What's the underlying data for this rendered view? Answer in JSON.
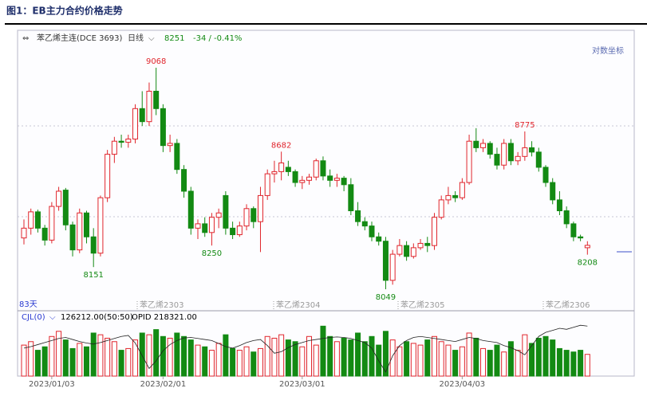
{
  "chart_data": {
    "type": "candlestick",
    "title": "图1：EB主力合约价格走势",
    "instrument": "苯乙烯主连(DCE 3693)",
    "period": "日线",
    "change": "-34 / -0.41%",
    "scale_mode": "对数坐标",
    "span": "83天",
    "contracts": [
      "苯乙烯2303",
      "苯乙烯2304",
      "苯乙烯2305",
      "苯乙烯2306"
    ],
    "volume_label": "CJL(0)",
    "volume_readout": "126212.00(50:50)",
    "opid_readout": "OPID 218321.00",
    "up_color": "#e0252c",
    "down_color": "#138a13",
    "opid_color": "#222222",
    "categories": [
      null,
      null,
      null,
      null,
      "2023/01/03",
      null,
      null,
      null,
      null,
      null,
      null,
      null,
      null,
      null,
      null,
      null,
      null,
      null,
      null,
      null,
      "2023/02/01",
      null,
      null,
      null,
      null,
      null,
      null,
      null,
      null,
      null,
      null,
      null,
      null,
      null,
      null,
      null,
      null,
      null,
      null,
      null,
      "2023/03/01",
      null,
      null,
      null,
      null,
      null,
      null,
      null,
      null,
      null,
      null,
      null,
      null,
      null,
      null,
      null,
      null,
      null,
      null,
      null,
      null,
      null,
      null,
      "2023/04/03",
      null,
      null,
      null,
      null,
      null,
      null,
      null,
      null,
      null,
      null,
      null,
      null,
      null,
      null,
      null,
      null,
      null,
      null
    ],
    "open": [
      8285,
      8330,
      8405,
      8330,
      8275,
      8430,
      8505,
      8345,
      8230,
      8400,
      8290,
      8215,
      8470,
      8670,
      8730,
      8725,
      8740,
      8880,
      8820,
      8960,
      8880,
      8710,
      8720,
      8600,
      8500,
      8330,
      8350,
      8310,
      8380,
      8480,
      8330,
      8300,
      8340,
      8420,
      8360,
      8480,
      8580,
      8590,
      8610,
      8590,
      8540,
      8550,
      8565,
      8640,
      8570,
      8550,
      8560,
      8530,
      8410,
      8360,
      8340,
      8290,
      8270,
      8090,
      8210,
      8250,
      8200,
      8240,
      8260,
      8250,
      8380,
      8460,
      8480,
      8470,
      8540,
      8730,
      8700,
      8720,
      8670,
      8620,
      8720,
      8640,
      8660,
      8700,
      8680,
      8610,
      8540,
      8460,
      8410,
      8350,
      8290,
      8240
    ],
    "high": [
      8370,
      8420,
      8415,
      8345,
      8450,
      8520,
      8515,
      8360,
      8420,
      8410,
      8330,
      8480,
      8690,
      8750,
      8760,
      8760,
      8900,
      8960,
      9000,
      9068,
      8900,
      8760,
      8740,
      8620,
      8520,
      8370,
      8380,
      8400,
      8420,
      8500,
      8360,
      8360,
      8440,
      8430,
      8520,
      8600,
      8640,
      8682,
      8640,
      8600,
      8570,
      8580,
      8650,
      8660,
      8600,
      8580,
      8570,
      8560,
      8450,
      8380,
      8360,
      8310,
      8290,
      8230,
      8280,
      8270,
      8260,
      8280,
      8290,
      8400,
      8480,
      8520,
      8500,
      8560,
      8760,
      8790,
      8740,
      8730,
      8700,
      8740,
      8740,
      8680,
      8775,
      8730,
      8700,
      8620,
      8560,
      8500,
      8430,
      8360,
      8300,
      8270
    ],
    "low": [
      8255,
      8300,
      8310,
      8250,
      8260,
      8410,
      8320,
      8200,
      8215,
      8260,
      8151,
      8200,
      8450,
      8630,
      8700,
      8700,
      8720,
      8800,
      8800,
      8850,
      8680,
      8680,
      8580,
      8470,
      8300,
      8280,
      8290,
      8250,
      8330,
      8300,
      8280,
      8290,
      8320,
      8330,
      8220,
      8460,
      8540,
      8550,
      8570,
      8520,
      8510,
      8530,
      8550,
      8550,
      8520,
      8520,
      8500,
      8390,
      8340,
      8320,
      8270,
      8250,
      8049,
      8070,
      8200,
      8180,
      8190,
      8230,
      8220,
      8230,
      8370,
      8440,
      8450,
      8460,
      8530,
      8680,
      8680,
      8650,
      8600,
      8600,
      8620,
      8620,
      8640,
      8660,
      8590,
      8520,
      8440,
      8390,
      8330,
      8270,
      8270,
      8208
    ],
    "close": [
      8330,
      8405,
      8330,
      8275,
      8430,
      8500,
      8345,
      8230,
      8400,
      8290,
      8215,
      8470,
      8670,
      8730,
      8725,
      8740,
      8880,
      8820,
      8960,
      8880,
      8710,
      8720,
      8600,
      8500,
      8330,
      8350,
      8310,
      8380,
      8400,
      8330,
      8300,
      8340,
      8420,
      8360,
      8480,
      8580,
      8590,
      8630,
      8590,
      8540,
      8550,
      8565,
      8640,
      8570,
      8550,
      8560,
      8530,
      8410,
      8360,
      8340,
      8290,
      8270,
      8090,
      8210,
      8250,
      8200,
      8240,
      8260,
      8250,
      8380,
      8460,
      8480,
      8470,
      8540,
      8730,
      8700,
      8720,
      8670,
      8620,
      8720,
      8640,
      8660,
      8700,
      8680,
      8610,
      8540,
      8460,
      8410,
      8350,
      8290,
      8285,
      8251
    ],
    "volume": [
      180000,
      200000,
      150000,
      170000,
      230000,
      260000,
      210000,
      160000,
      190000,
      170000,
      250000,
      240000,
      220000,
      200000,
      150000,
      160000,
      210000,
      250000,
      240000,
      270000,
      230000,
      220000,
      250000,
      230000,
      210000,
      180000,
      170000,
      150000,
      190000,
      240000,
      160000,
      150000,
      170000,
      140000,
      160000,
      230000,
      220000,
      240000,
      210000,
      200000,
      170000,
      230000,
      180000,
      290000,
      230000,
      200000,
      220000,
      210000,
      250000,
      200000,
      230000,
      180000,
      260000,
      210000,
      170000,
      200000,
      190000,
      180000,
      210000,
      230000,
      200000,
      180000,
      150000,
      170000,
      250000,
      220000,
      160000,
      150000,
      180000,
      140000,
      200000,
      150000,
      240000,
      190000,
      220000,
      230000,
      210000,
      160000,
      150000,
      140000,
      150000,
      126212
    ],
    "opid": [
      175000,
      178000,
      182000,
      186000,
      190000,
      194000,
      196000,
      192000,
      188000,
      185000,
      183000,
      186000,
      190000,
      194000,
      198000,
      200000,
      185000,
      160000,
      135000,
      150000,
      170000,
      182000,
      190000,
      195000,
      196000,
      194000,
      192000,
      190000,
      184000,
      178000,
      175000,
      180000,
      186000,
      190000,
      192000,
      180000,
      165000,
      168000,
      176000,
      182000,
      186000,
      190000,
      192000,
      194000,
      196000,
      197000,
      196000,
      194000,
      190000,
      186000,
      175000,
      150000,
      128000,
      160000,
      180000,
      190000,
      196000,
      198000,
      196000,
      194000,
      192000,
      190000,
      188000,
      192000,
      196000,
      194000,
      190000,
      188000,
      186000,
      180000,
      176000,
      170000,
      162000,
      180000,
      198000,
      206000,
      210000,
      214000,
      212000,
      216000,
      220000,
      218321
    ],
    "ylim": [
      8005,
      9178
    ],
    "vol_ylim": [
      0,
      310000
    ],
    "opid_ylim": [
      120000,
      225000
    ]
  }
}
